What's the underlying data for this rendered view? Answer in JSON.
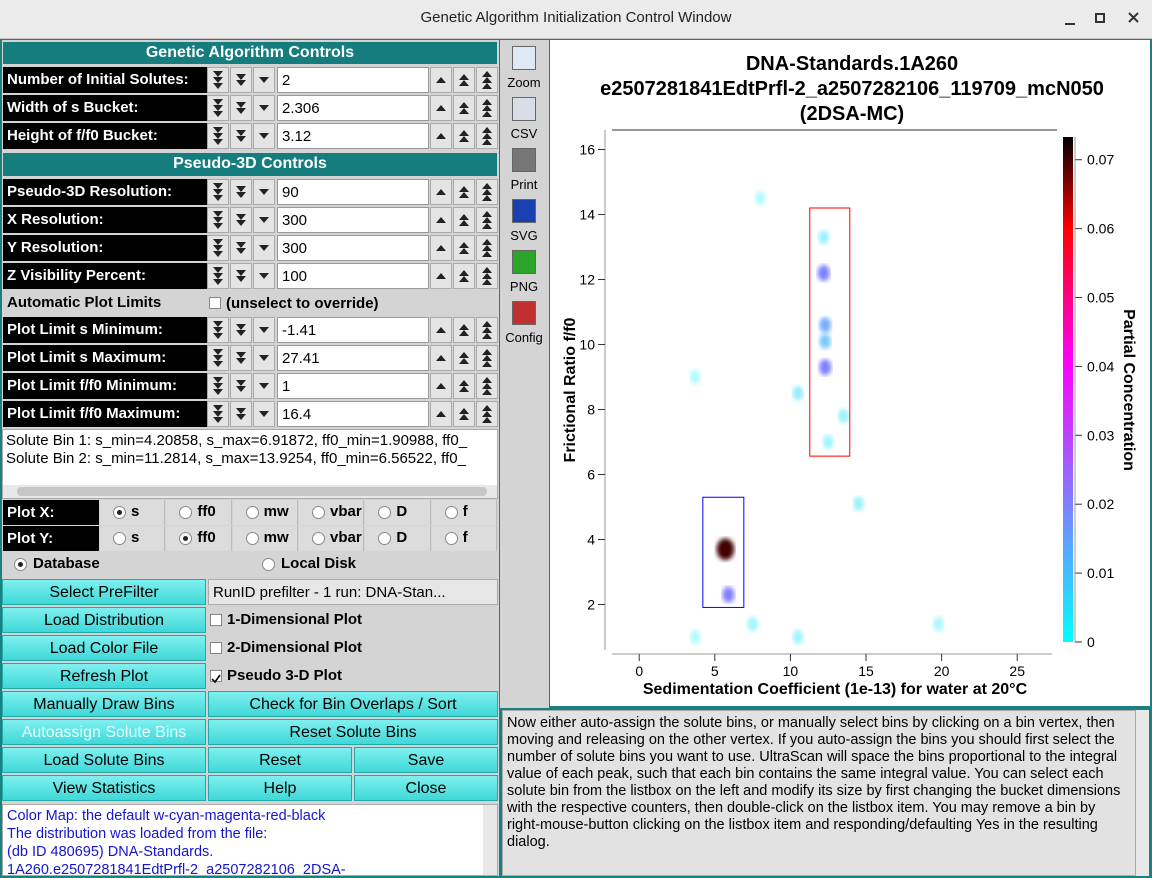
{
  "window": {
    "title": "Genetic Algorithm Initialization Control Window"
  },
  "controls": {
    "ga_header": "Genetic Algorithm Controls",
    "ga_rows": [
      {
        "label": "Number of Initial Solutes:",
        "value": "2"
      },
      {
        "label": "Width of s Bucket:",
        "value": "2.306"
      },
      {
        "label": "Height of f/f0 Bucket:",
        "value": "3.12"
      }
    ],
    "p3d_header": "Pseudo-3D Controls",
    "p3d_rows": [
      {
        "label": "Pseudo-3D Resolution:",
        "value": "90"
      },
      {
        "label": "X Resolution:",
        "value": "300"
      },
      {
        "label": "Y Resolution:",
        "value": "300"
      },
      {
        "label": "Z Visibility Percent:",
        "value": "100"
      }
    ],
    "auto_limits": {
      "label": "Automatic Plot Limits",
      "checkbox": "(unselect to override)"
    },
    "limit_rows": [
      {
        "label": "Plot Limit s Minimum:",
        "value": "-1.41"
      },
      {
        "label": "Plot Limit s Maximum:",
        "value": "27.41"
      },
      {
        "label": "Plot Limit f/f0 Minimum:",
        "value": "1"
      },
      {
        "label": "Plot Limit f/f0 Maximum:",
        "value": "16.4"
      }
    ],
    "bin_list": [
      "Solute Bin 1: s_min=4.20858, s_max=6.91872, ff0_min=1.90988, ff0_",
      "Solute Bin 2: s_min=11.2814, s_max=13.9254, ff0_min=6.56522, ff0_"
    ],
    "plot_axes": [
      {
        "label": "Plot X:",
        "options": [
          "s",
          "ff0",
          "mw",
          "vbar",
          "D",
          "f"
        ],
        "selected": 0
      },
      {
        "label": "Plot Y:",
        "options": [
          "s",
          "ff0",
          "mw",
          "vbar",
          "D",
          "f"
        ],
        "selected": 1
      }
    ],
    "source": {
      "options": [
        "Database",
        "Local Disk"
      ],
      "selected": 0
    },
    "button_rows": [
      [
        {
          "text": "Select PreFilter",
          "kind": "button"
        },
        {
          "text": "RunID prefilter - 1 run: DNA-Stan...",
          "kind": "field"
        }
      ],
      [
        {
          "text": "Load Distribution",
          "kind": "button"
        },
        {
          "text": "1-Dimensional Plot",
          "kind": "check"
        }
      ],
      [
        {
          "text": "Load Color File",
          "kind": "button"
        },
        {
          "text": "2-Dimensional Plot",
          "kind": "check"
        }
      ],
      [
        {
          "text": "Refresh Plot",
          "kind": "button"
        },
        {
          "text": "Pseudo 3-D Plot",
          "kind": "check-on"
        }
      ],
      [
        {
          "text": "Manually Draw Bins",
          "kind": "button"
        },
        {
          "text": "Check for Bin Overlaps / Sort",
          "kind": "button"
        }
      ],
      [
        {
          "text": "Autoassign Solute Bins",
          "kind": "button-disabled"
        },
        {
          "text": "Reset Solute Bins",
          "kind": "button"
        }
      ],
      [
        {
          "text": "Load Solute Bins",
          "kind": "button"
        },
        {
          "text": "Reset",
          "kind": "button"
        },
        {
          "text": "Save",
          "kind": "button"
        }
      ],
      [
        {
          "text": "View Statistics",
          "kind": "button"
        },
        {
          "text": "Help",
          "kind": "button"
        },
        {
          "text": "Close",
          "kind": "button"
        }
      ]
    ],
    "log_lines": [
      "Color Map:  the default w-cyan-magenta-red-black",
      "The distribution was loaded from the file:",
      "  (db ID 480695) DNA-Standards.",
      "1A260.e2507281841EdtPrfl-2_a2507282106_2DSA-"
    ]
  },
  "toolbar": [
    "Zoom",
    "CSV",
    "Print",
    "SVG",
    "PNG",
    "Config"
  ],
  "chart_data": {
    "type": "density",
    "title": [
      "DNA-Standards.1A260",
      "e2507281841EdtPrfl-2_a2507282106_119709_mcN050",
      "(2DSA-MC)"
    ],
    "xlabel": "Sedimentation Coefficient (1e-13) for water at 20°C",
    "ylabel": "Frictional Ratio f/f0",
    "zlabel": "Partial Concentration",
    "xlim": [
      -1.8,
      27.3
    ],
    "xticks": [
      0,
      5,
      10,
      15,
      20,
      25
    ],
    "ylim": [
      0.6,
      16.6
    ],
    "yticks": [
      2,
      4,
      6,
      8,
      10,
      12,
      14,
      16
    ],
    "zlim": [
      0,
      0.0733
    ],
    "zticks": [
      0,
      0.01,
      0.02,
      0.03,
      0.04,
      0.05,
      0.06,
      0.07
    ],
    "colormap": [
      "#00ffff",
      "#ff00ff",
      "#ff0000",
      "#000000"
    ],
    "colormap_stops": [
      0,
      0.55,
      0.82,
      1
    ],
    "x": [
      5.7,
      5.9,
      12.2,
      12.3,
      12.3,
      12.3,
      12.2,
      10.5,
      14.5,
      13.5,
      12.5,
      7.5,
      10.5,
      19.8,
      3.7,
      3.7,
      8.0
    ],
    "y": [
      3.7,
      2.3,
      12.2,
      10.6,
      10.1,
      9.3,
      13.3,
      8.5,
      5.1,
      7.8,
      7.0,
      1.4,
      1.0,
      1.4,
      1.0,
      9.0,
      14.5
    ],
    "values": [
      0.07,
      0.02,
      0.02,
      0.015,
      0.012,
      0.02,
      0.005,
      0.006,
      0.005,
      0.005,
      0.004,
      0.004,
      0.004,
      0.003,
      0.002,
      0.002,
      0.002
    ],
    "regions": [
      {
        "color": "#0000ff",
        "x": [
          4.20858,
          6.91872
        ],
        "y": [
          1.90988,
          5.3
        ]
      },
      {
        "color": "#ff0000",
        "x": [
          11.2814,
          13.9254
        ],
        "y": [
          6.56522,
          14.2
        ]
      }
    ]
  },
  "info_text": "Now either auto-assign the solute bins, or manually select bins by clicking on a bin vertex, then moving and releasing on the other vertex. If you auto-assign the bins you should first select the number of solute bins you want to use. UltraScan will space the bins proportional to the integral value of each peak, such that each bin contains the same integral value. You can select each solute bin from the listbox on the left and modify its size by first changing the bucket dimensions with the respective counters, then double-click on the listbox item. You may remove a bin by right-mouse-button clicking on the listbox item and responding/defaulting Yes in the resulting dialog."
}
